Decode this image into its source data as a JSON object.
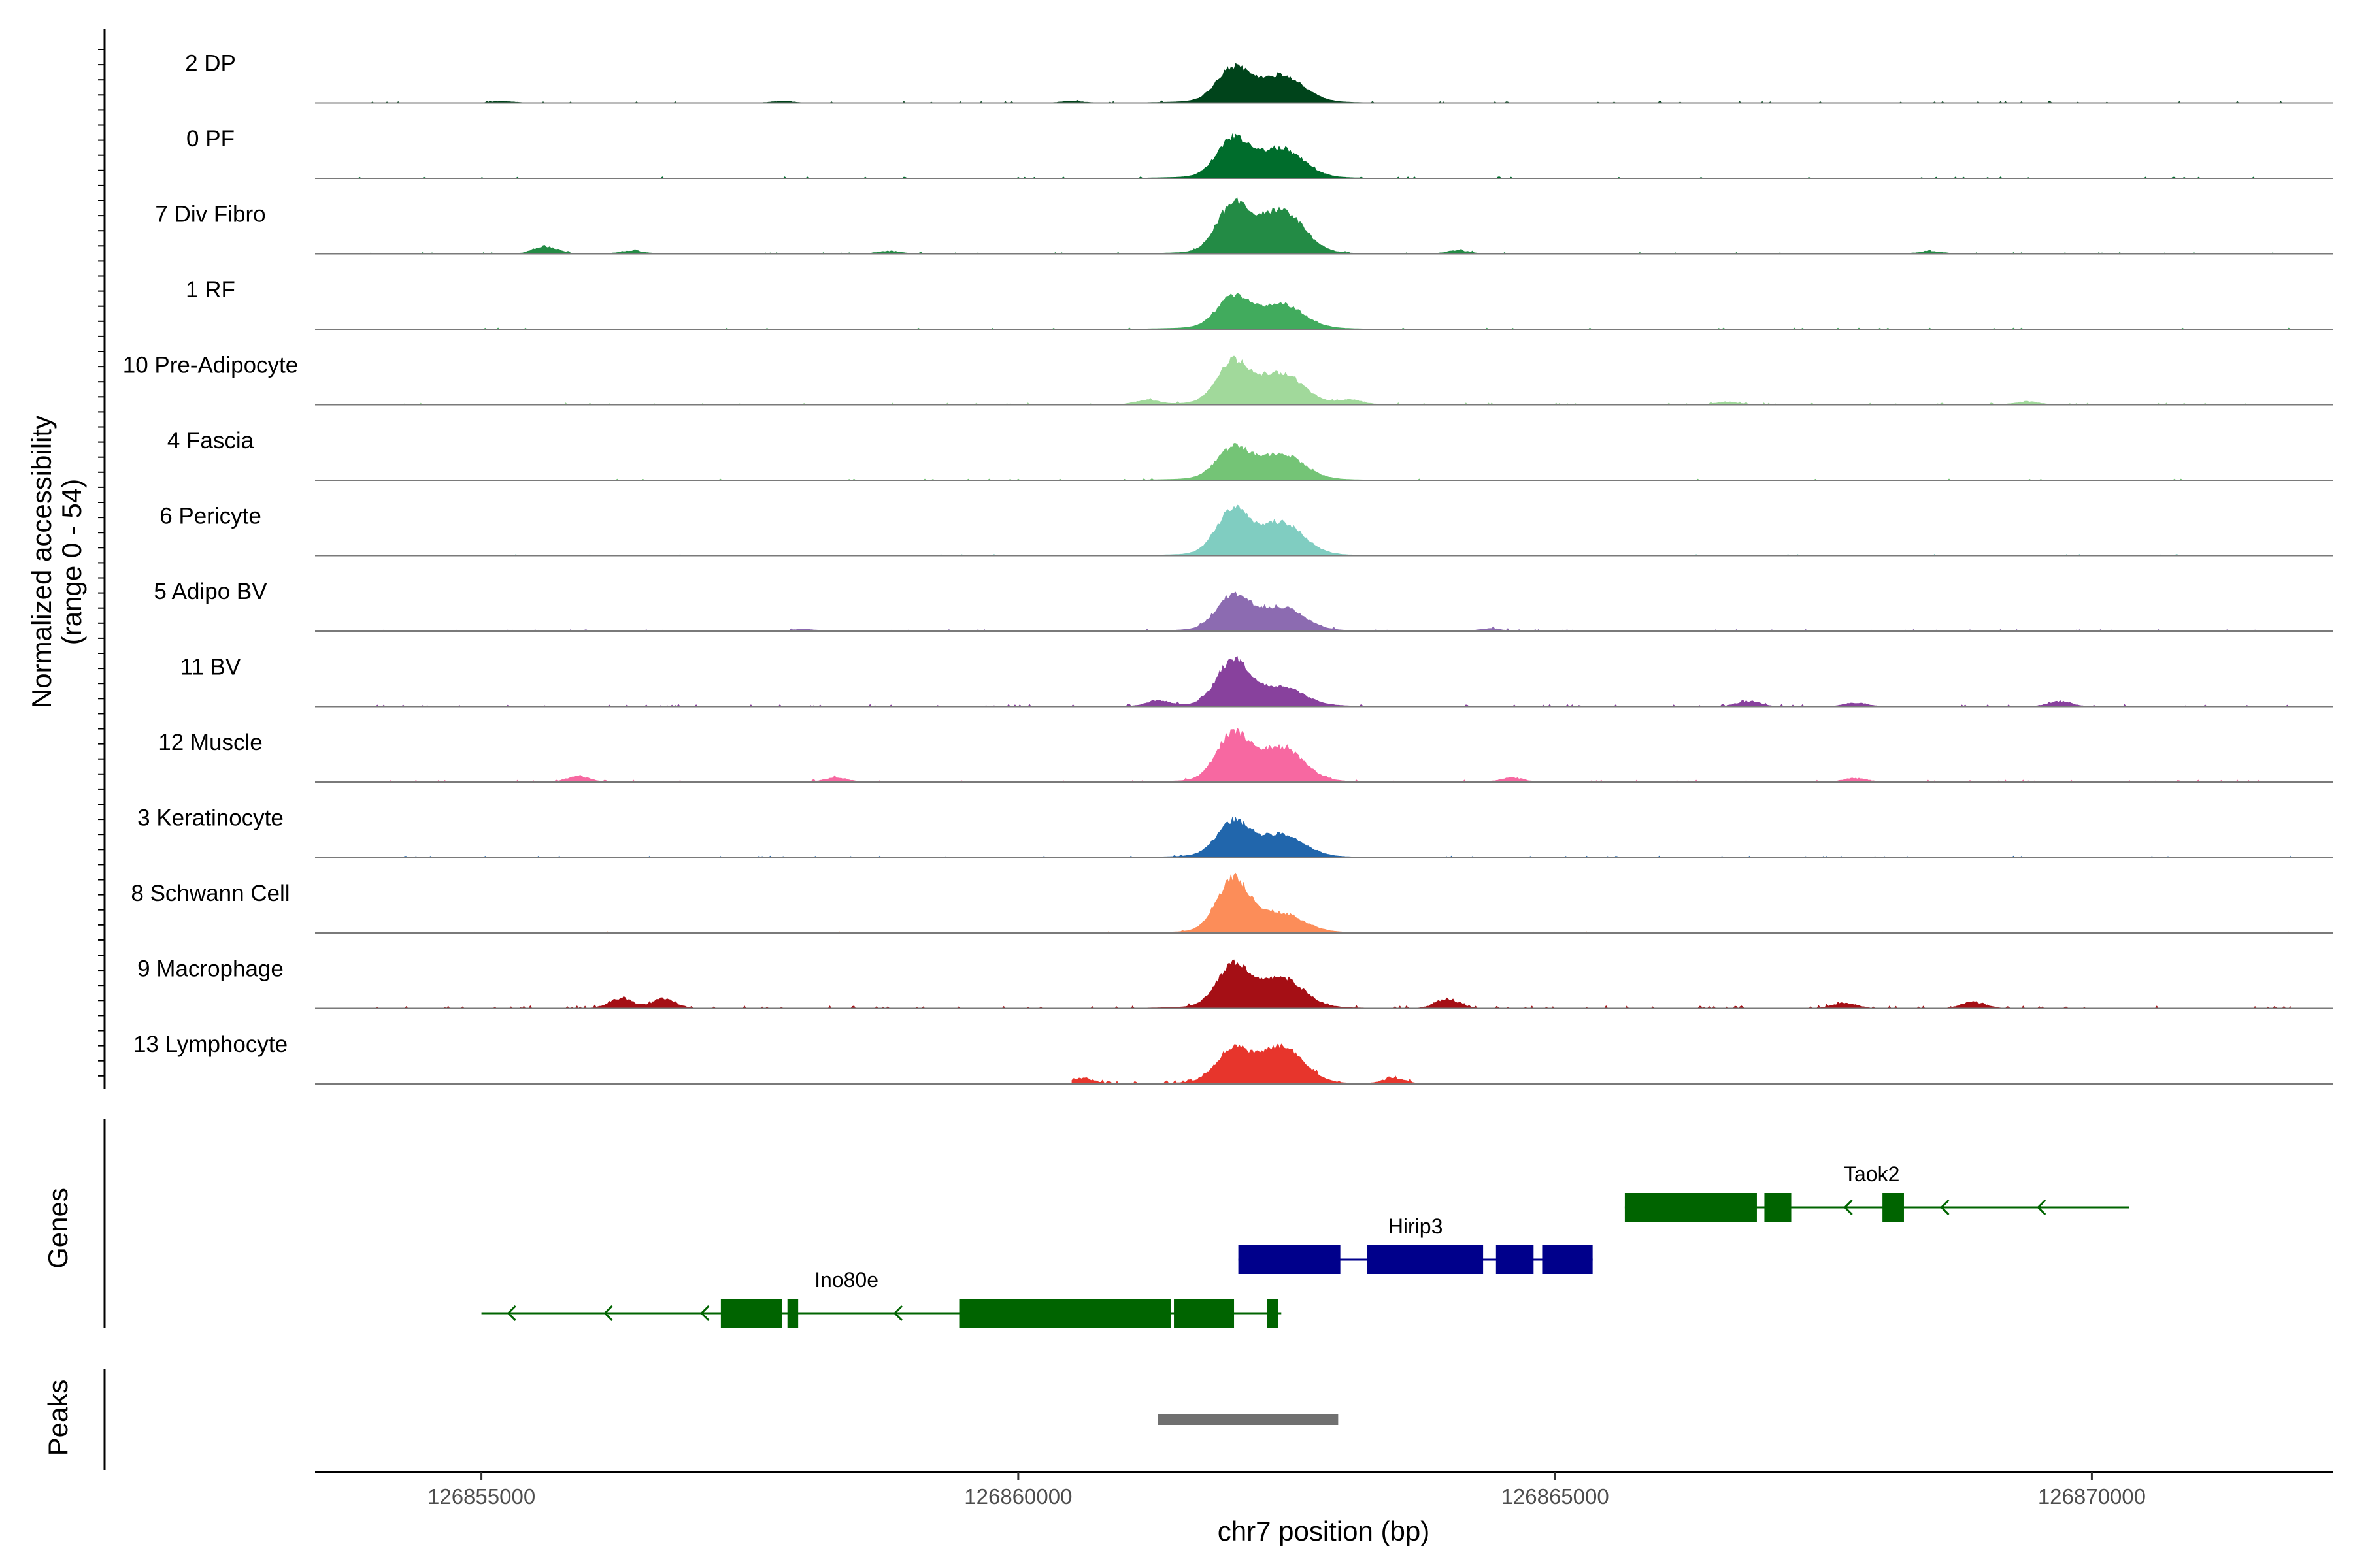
{
  "chart_data": {
    "type": "area",
    "title": "",
    "xlabel": "chr7 position (bp)",
    "ylabel": "Normalized accessibility",
    "ylabel_range": "(range 0 - 54)",
    "xlim": [
      126853450,
      126872250
    ],
    "ylim": [
      0,
      54
    ],
    "x_ticks": [
      126855000,
      126860000,
      126865000,
      126870000
    ],
    "x_tick_labels": [
      "126855000",
      "126860000",
      "126865000",
      "126870000"
    ],
    "peak_centers": [
      126862000,
      126862450
    ],
    "tracks": [
      {
        "name": "2 DP",
        "color": "#00441b",
        "peaks": [
          [
            126862000,
            0.56
          ],
          [
            126862450,
            0.44
          ]
        ],
        "noise": 0.03,
        "extra": [
          [
            126855200,
            0.03
          ],
          [
            126857800,
            0.03
          ],
          [
            126860500,
            0.03
          ]
        ]
      },
      {
        "name": "0 PF",
        "color": "#006d2c",
        "peaks": [
          [
            126862000,
            0.64
          ],
          [
            126862450,
            0.48
          ]
        ],
        "noise": 0.03,
        "extra": []
      },
      {
        "name": "7 Div Fibro",
        "color": "#238b45",
        "peaks": [
          [
            126862000,
            0.8
          ],
          [
            126862450,
            0.72
          ]
        ],
        "noise": 0.03,
        "extra": [
          [
            126855600,
            0.14
          ],
          [
            126856400,
            0.06
          ],
          [
            126858800,
            0.05
          ],
          [
            126864100,
            0.06
          ],
          [
            126868500,
            0.05
          ]
        ]
      },
      {
        "name": "1 RF",
        "color": "#41ab5d",
        "peaks": [
          [
            126862000,
            0.52
          ],
          [
            126862450,
            0.4
          ]
        ],
        "noise": 0.02,
        "extra": []
      },
      {
        "name": "10 Pre-Adipocyte",
        "color": "#a1d99b",
        "peaks": [
          [
            126862000,
            0.7
          ],
          [
            126862450,
            0.5
          ]
        ],
        "noise": 0.05,
        "extra": [
          [
            126861200,
            0.08
          ],
          [
            126863100,
            0.08
          ],
          [
            126866600,
            0.05
          ],
          [
            126869400,
            0.06
          ]
        ]
      },
      {
        "name": "4 Fascia",
        "color": "#74c476",
        "peaks": [
          [
            126862000,
            0.52
          ],
          [
            126862450,
            0.42
          ]
        ],
        "noise": 0.02,
        "extra": []
      },
      {
        "name": "6 Pericyte",
        "color": "#80cdc1",
        "peaks": [
          [
            126862000,
            0.78
          ],
          [
            126862450,
            0.54
          ]
        ],
        "noise": 0.02,
        "extra": []
      },
      {
        "name": "5 Adipo BV",
        "color": "#8c6bb1",
        "peaks": [
          [
            126862000,
            0.58
          ],
          [
            126862450,
            0.38
          ]
        ],
        "noise": 0.05,
        "extra": [
          [
            126864400,
            0.05
          ],
          [
            126858000,
            0.04
          ]
        ]
      },
      {
        "name": "11 BV",
        "color": "#88419d",
        "peaks": [
          [
            126862000,
            0.76
          ],
          [
            126862450,
            0.3
          ]
        ],
        "noise": 0.07,
        "extra": [
          [
            126861300,
            0.1
          ],
          [
            126866800,
            0.1
          ],
          [
            126869700,
            0.1
          ],
          [
            126867800,
            0.07
          ]
        ]
      },
      {
        "name": "12 Muscle",
        "color": "#f768a1",
        "peaks": [
          [
            126862000,
            0.8
          ],
          [
            126862450,
            0.56
          ]
        ],
        "noise": 0.06,
        "extra": [
          [
            126855900,
            0.1
          ],
          [
            126858300,
            0.08
          ],
          [
            126864600,
            0.08
          ],
          [
            126867800,
            0.07
          ]
        ]
      },
      {
        "name": "3 Keratinocyte",
        "color": "#2166ac",
        "peaks": [
          [
            126862000,
            0.58
          ],
          [
            126862450,
            0.36
          ]
        ],
        "noise": 0.03,
        "extra": []
      },
      {
        "name": "8 Schwann Cell",
        "color": "#fc8d59",
        "peaks": [
          [
            126862000,
            0.9
          ],
          [
            126862450,
            0.3
          ]
        ],
        "noise": 0.02,
        "extra": []
      },
      {
        "name": "9 Macrophage",
        "color": "#a50f15",
        "peaks": [
          [
            126862000,
            0.7
          ],
          [
            126862450,
            0.5
          ]
        ],
        "noise": 0.09,
        "extra": [
          [
            126856300,
            0.2
          ],
          [
            126856700,
            0.18
          ],
          [
            126864000,
            0.18
          ],
          [
            126867700,
            0.1
          ],
          [
            126868900,
            0.12
          ]
        ]
      },
      {
        "name": "13 Lymphocyte",
        "color": "#e7352c",
        "peaks": [
          [
            126862000,
            0.56
          ],
          [
            126862450,
            0.6
          ]
        ],
        "noise": 0.1,
        "extra": [
          [
            126860600,
            0.1
          ],
          [
            126863500,
            0.1
          ]
        ],
        "range": [
          126860500,
          126863700
        ]
      }
    ],
    "genes": [
      {
        "name": "Taok2",
        "strand": "-",
        "color": "#006400",
        "start": 126865650,
        "end": 126870350,
        "row": 0,
        "exons": [
          [
            126865650,
            126866880
          ],
          [
            126866950,
            126867200
          ],
          [
            126868050,
            126868250
          ]
        ]
      },
      {
        "name": "Hirip3",
        "strand": "+",
        "color": "#00008b",
        "start": 126862050,
        "end": 126865350,
        "row": 1,
        "exons": [
          [
            126862050,
            126863000
          ],
          [
            126863250,
            126864330
          ],
          [
            126864450,
            126864800
          ],
          [
            126864880,
            126865350
          ]
        ]
      },
      {
        "name": "Ino80e",
        "strand": "-",
        "color": "#006400",
        "start": 126855000,
        "end": 126862450,
        "row": 2,
        "exons": [
          [
            126857230,
            126857800
          ],
          [
            126857850,
            126857950
          ],
          [
            126859450,
            126861420
          ],
          [
            126861450,
            126862010
          ],
          [
            126862320,
            126862420
          ]
        ]
      }
    ],
    "peaks_track": [
      [
        126861300,
        126862980
      ]
    ],
    "peaks_color": "#707070",
    "panel_titles": {
      "genes": "Genes",
      "peaks": "Peaks"
    }
  }
}
